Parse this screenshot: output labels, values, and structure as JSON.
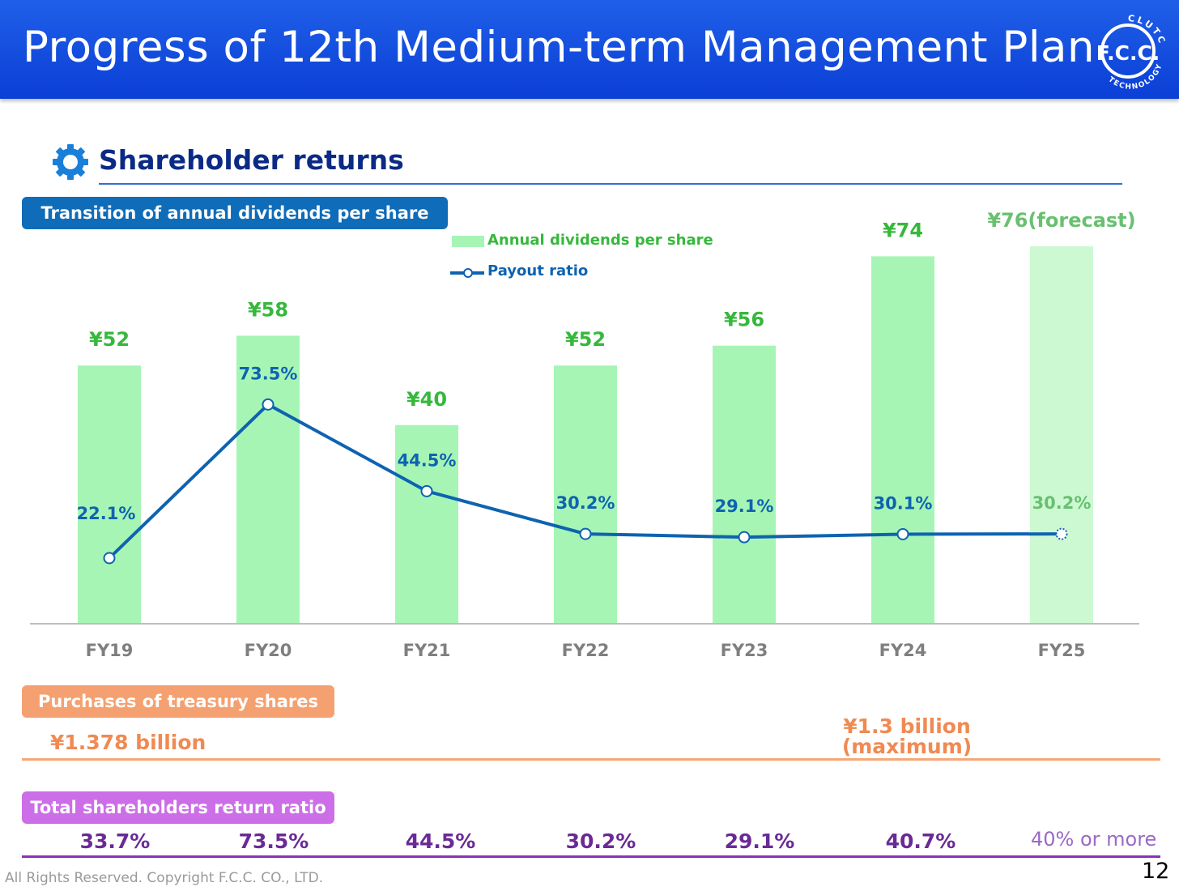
{
  "header": {
    "title": "Progress of 12th Medium-term Management Plan"
  },
  "logo": {
    "top_text": "CLUTCH",
    "main_text": "F.C.C.",
    "bottom_text": "TECHNOLOGY"
  },
  "section": {
    "title": "Shareholder returns",
    "icon": "gear-icon"
  },
  "dividends_panel": {
    "label": "Transition of annual dividends per share"
  },
  "chart_data": {
    "type": "bar",
    "categories": [
      "FY19",
      "FY20",
      "FY21",
      "FY22",
      "FY23",
      "FY24",
      "FY25"
    ],
    "series": [
      {
        "name": "Annual dividends per share",
        "type": "bar",
        "values": [
          52,
          58,
          40,
          52,
          56,
          74,
          76
        ],
        "labels": [
          "¥52",
          "¥58",
          "¥40",
          "¥52",
          "¥56",
          "¥74",
          "¥76(forecast)"
        ],
        "color": "#a6f5b5",
        "forecast_color": "#cdf9d2"
      },
      {
        "name": "Payout ratio",
        "type": "line",
        "values": [
          22.1,
          73.5,
          44.5,
          30.2,
          29.1,
          30.1,
          30.2
        ],
        "labels": [
          "22.1%",
          "73.5%",
          "44.5%",
          "30.2%",
          "29.1%",
          "30.1%",
          "30.2%"
        ],
        "color": "#0e63b0"
      }
    ],
    "legend_position": "top-center",
    "forecast_index": 6,
    "colors": {
      "bar_label": "#36b83c",
      "forecast_label": "#68c070",
      "line_label": "#0e63b0",
      "axis_label": "#7f7f7f"
    }
  },
  "treasury": {
    "label": "Purchases of treasury shares",
    "left_value": "¥1.378 billion",
    "right_value_line1": "¥1.3 billion",
    "right_value_line2": "(maximum)"
  },
  "total_return": {
    "label": "Total shareholders return ratio",
    "values": [
      "33.7%",
      "73.5%",
      "44.5%",
      "30.2%",
      "29.1%",
      "40.7%"
    ],
    "last": "40% or more"
  },
  "footer": {
    "copyright": "All Rights Reserved. Copyright F.C.C. CO., LTD.",
    "page": "12"
  }
}
